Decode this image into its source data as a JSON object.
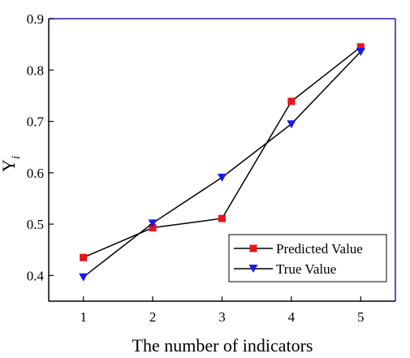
{
  "chart_data": {
    "type": "line",
    "x": [
      1,
      2,
      3,
      4,
      5
    ],
    "xlabel": "The number of indicators",
    "ylabel": "Y",
    "ylabel_sub": "i",
    "xlim": [
      0.5,
      5.5
    ],
    "ylim": [
      0.35,
      0.9
    ],
    "xticks": [
      "1",
      "2",
      "3",
      "4",
      "5"
    ],
    "yticks": [
      "0.4",
      "0.5",
      "0.6",
      "0.7",
      "0.8",
      "0.9"
    ],
    "yticks_values": [
      0.4,
      0.5,
      0.6,
      0.7,
      0.8,
      0.9
    ],
    "grid": false,
    "legend_position": "bottom-right",
    "series": [
      {
        "name": "Predicted Value",
        "values": [
          0.435,
          0.493,
          0.511,
          0.739,
          0.845
        ],
        "marker": "square",
        "marker_color": "#e8141b",
        "line_color": "#000000"
      },
      {
        "name": "True Value",
        "values": [
          0.397,
          0.502,
          0.591,
          0.695,
          0.836
        ],
        "marker": "triangle-down",
        "marker_color": "#1a1aeb",
        "line_color": "#000000"
      }
    ],
    "frame_colors": {
      "left_bottom": "#000000",
      "top_right": "#1f1f9e"
    }
  }
}
